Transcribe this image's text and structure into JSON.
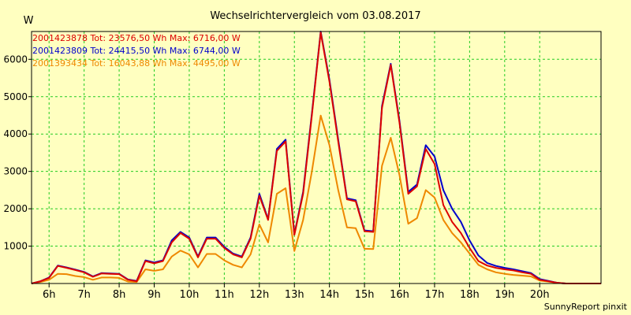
{
  "chart_data": {
    "type": "line",
    "title": "Wechselrichtervergleich vom 03.08.2017",
    "ylabel": "W",
    "xlabel": "",
    "footer": "SunnyReport pinxit",
    "ylim": [
      0,
      6744
    ],
    "y_ticks": [
      1000,
      2000,
      3000,
      4000,
      5000,
      6000
    ],
    "xlim": [
      5.5,
      21.75
    ],
    "x_ticks": [
      {
        "value": 6,
        "label": "6h"
      },
      {
        "value": 7,
        "label": "7h"
      },
      {
        "value": 8,
        "label": "8h"
      },
      {
        "value": 9,
        "label": "9h"
      },
      {
        "value": 10,
        "label": "10h"
      },
      {
        "value": 11,
        "label": "11h"
      },
      {
        "value": 12,
        "label": "12h"
      },
      {
        "value": 13,
        "label": "13h"
      },
      {
        "value": 14,
        "label": "14h"
      },
      {
        "value": 15,
        "label": "15h"
      },
      {
        "value": 16,
        "label": "16h"
      },
      {
        "value": 17,
        "label": "17h"
      },
      {
        "value": 18,
        "label": "18h"
      },
      {
        "value": 19,
        "label": "19h"
      },
      {
        "value": 20,
        "label": "20h"
      }
    ],
    "grid": true,
    "legend_position": "top-left",
    "x": [
      5.5,
      5.75,
      6,
      6.25,
      6.5,
      6.75,
      7,
      7.25,
      7.5,
      7.75,
      8,
      8.25,
      8.5,
      8.75,
      9,
      9.25,
      9.5,
      9.75,
      10,
      10.25,
      10.5,
      10.75,
      11,
      11.25,
      11.5,
      11.75,
      12,
      12.25,
      12.5,
      12.75,
      13,
      13.25,
      13.5,
      13.75,
      14,
      14.25,
      14.5,
      14.75,
      15,
      15.25,
      15.5,
      15.75,
      16,
      16.25,
      16.5,
      16.75,
      17,
      17.25,
      17.5,
      17.75,
      18,
      18.25,
      18.5,
      18.75,
      19,
      19.25,
      19.5,
      19.75,
      20,
      20.25,
      20.5,
      20.75,
      21,
      21.25,
      21.5,
      21.75
    ],
    "series": [
      {
        "name": "2001423878",
        "legend": "2001423878 Tot: 23576,50 Wh Max: 6716,00 W",
        "color": "#dd0000",
        "values": [
          0,
          60,
          150,
          470,
          420,
          360,
          300,
          180,
          270,
          260,
          250,
          100,
          60,
          600,
          540,
          600,
          1100,
          1350,
          1200,
          700,
          1200,
          1200,
          950,
          780,
          700,
          1200,
          2350,
          1700,
          3550,
          3800,
          1300,
          2400,
          4500,
          6716,
          5400,
          3800,
          2250,
          2200,
          1400,
          1380,
          4700,
          5850,
          4300,
          2400,
          2600,
          3600,
          3200,
          2100,
          1650,
          1350,
          950,
          600,
          480,
          420,
          380,
          350,
          300,
          260,
          100,
          60,
          20,
          0,
          0,
          0,
          0,
          0
        ]
      },
      {
        "name": "2001423809",
        "legend": "2001423809 Tot: 24415,50 Wh Max: 6744,00 W",
        "color": "#0000cc",
        "values": [
          0,
          60,
          160,
          480,
          430,
          370,
          310,
          190,
          280,
          270,
          260,
          110,
          70,
          620,
          560,
          620,
          1150,
          1380,
          1230,
          720,
          1230,
          1230,
          980,
          800,
          720,
          1230,
          2400,
          1720,
          3600,
          3850,
          1320,
          2450,
          4550,
          6744,
          5450,
          3850,
          2280,
          2230,
          1420,
          1400,
          4750,
          5880,
          4350,
          2450,
          2650,
          3700,
          3400,
          2500,
          2000,
          1650,
          1150,
          750,
          550,
          470,
          420,
          380,
          330,
          280,
          120,
          70,
          20,
          0,
          0,
          0,
          0,
          0
        ]
      },
      {
        "name": "2001393434",
        "legend": "2001393434 Tot: 16043,88 Wh Max: 4495,00 W",
        "color": "#ee8800",
        "values": [
          0,
          40,
          100,
          260,
          250,
          200,
          170,
          100,
          160,
          160,
          150,
          50,
          40,
          380,
          340,
          380,
          720,
          880,
          780,
          430,
          790,
          790,
          620,
          500,
          430,
          780,
          1580,
          1100,
          2400,
          2550,
          870,
          1700,
          3000,
          4495,
          3700,
          2500,
          1500,
          1480,
          930,
          920,
          3150,
          3900,
          2900,
          1600,
          1750,
          2500,
          2300,
          1700,
          1350,
          1100,
          800,
          500,
          380,
          300,
          260,
          230,
          210,
          190,
          80,
          50,
          20,
          0,
          0,
          0,
          0,
          0
        ]
      }
    ]
  }
}
